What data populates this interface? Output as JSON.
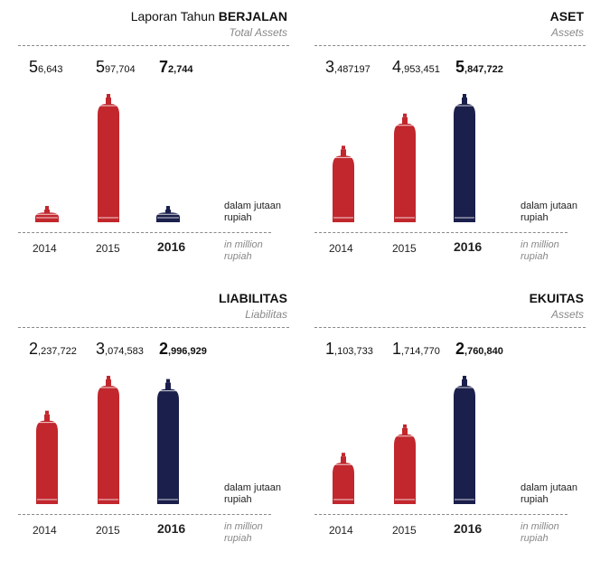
{
  "common": {
    "unit_id": "dalam jutaan",
    "unit_id2": "rupiah",
    "unit_en": "in million",
    "unit_en2": "rupiah",
    "colors": {
      "past": "#c1272d",
      "current": "#1b1f4b"
    }
  },
  "chart_data": [
    {
      "type": "bar",
      "title_prefix": "Laporan Tahun ",
      "title": "BERJALAN",
      "subtitle": "Total Assets",
      "categories": [
        "2014",
        "2015",
        "2016"
      ],
      "labels": [
        {
          "lead": "5",
          "rest": "6,643"
        },
        {
          "lead": "5",
          "rest": "97,704"
        },
        {
          "lead": "7",
          "rest": "2,744"
        }
      ],
      "values": [
        56643,
        597704,
        72744
      ],
      "ylim": [
        0,
        597704
      ],
      "highlight_index": 2
    },
    {
      "type": "bar",
      "title_prefix": "",
      "title": "ASET",
      "subtitle": "Assets",
      "categories": [
        "2014",
        "2015",
        "2016"
      ],
      "labels": [
        {
          "lead": "3",
          "rest": ",487197"
        },
        {
          "lead": "4",
          "rest": ",953,451"
        },
        {
          "lead": "5",
          "rest": ",847,722"
        }
      ],
      "values": [
        3487197,
        4953451,
        5847722
      ],
      "ylim": [
        0,
        5847722
      ],
      "highlight_index": 2
    },
    {
      "type": "bar",
      "title_prefix": "",
      "title": "LIABILITAS",
      "subtitle": "Liabilitas",
      "categories": [
        "2014",
        "2015",
        "2016"
      ],
      "labels": [
        {
          "lead": "2",
          "rest": ",237,722"
        },
        {
          "lead": "3",
          "rest": ",074,583"
        },
        {
          "lead": "2",
          "rest": ",996,929"
        }
      ],
      "values": [
        2237722,
        3074583,
        2996929
      ],
      "ylim": [
        0,
        3074583
      ],
      "highlight_index": 2
    },
    {
      "type": "bar",
      "title_prefix": "",
      "title": "EKUITAS",
      "subtitle": "Assets",
      "categories": [
        "2014",
        "2015",
        "2016"
      ],
      "labels": [
        {
          "lead": "1",
          "rest": ",103,733"
        },
        {
          "lead": "1",
          "rest": ",714,770"
        },
        {
          "lead": "2",
          "rest": ",760,840"
        }
      ],
      "values": [
        1103733,
        1714770,
        2760840
      ],
      "ylim": [
        0,
        2760840
      ],
      "highlight_index": 2
    }
  ]
}
